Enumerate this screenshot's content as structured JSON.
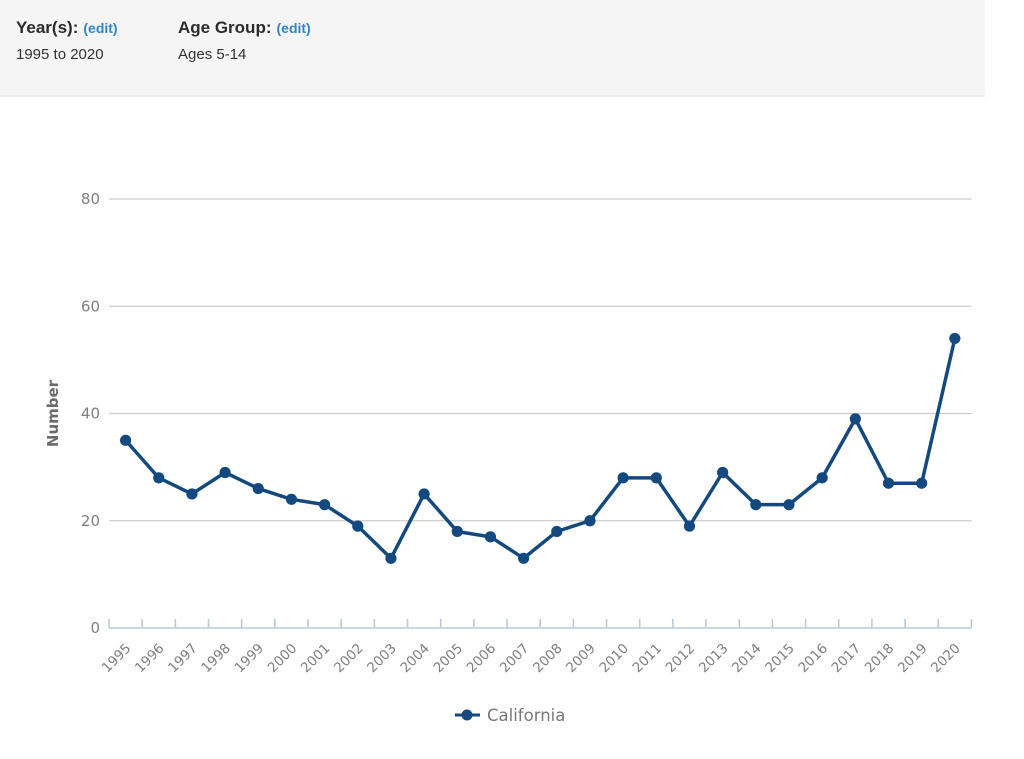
{
  "header": {
    "years": {
      "label": "Year(s):",
      "edit_link": "(edit)",
      "value": "1995 to 2020"
    },
    "age_group": {
      "label": "Age Group:",
      "edit_link": "(edit)",
      "value": "Ages 5-14"
    }
  },
  "chart_data": {
    "type": "line",
    "title": "",
    "xlabel": "",
    "ylabel": "Number",
    "categories": [
      "1995",
      "1996",
      "1997",
      "1998",
      "1999",
      "2000",
      "2001",
      "2002",
      "2003",
      "2004",
      "2005",
      "2006",
      "2007",
      "2008",
      "2009",
      "2010",
      "2011",
      "2012",
      "2013",
      "2014",
      "2015",
      "2016",
      "2017",
      "2018",
      "2019",
      "2020"
    ],
    "series": [
      {
        "name": "California",
        "color": "#14497f",
        "values": [
          35,
          28,
          25,
          29,
          26,
          24,
          23,
          19,
          13,
          25,
          18,
          17,
          13,
          18,
          20,
          28,
          28,
          19,
          29,
          23,
          23,
          28,
          39,
          27,
          27,
          54
        ]
      }
    ],
    "ylim": [
      0,
      80
    ],
    "yticks": [
      0,
      20,
      40,
      60,
      80
    ],
    "grid": "horizontal",
    "legend_position": "bottom"
  },
  "colors": {
    "accent_blue": "#2f86c3",
    "series_line": "#14497f",
    "gridline": "#cbcbcb",
    "axis": "#b9cbdb",
    "tick_text": "#7f7f7f",
    "axis_title_text": "#6b6b6b",
    "legend_text": "#787878",
    "header_bg": "#f5f5f5"
  }
}
